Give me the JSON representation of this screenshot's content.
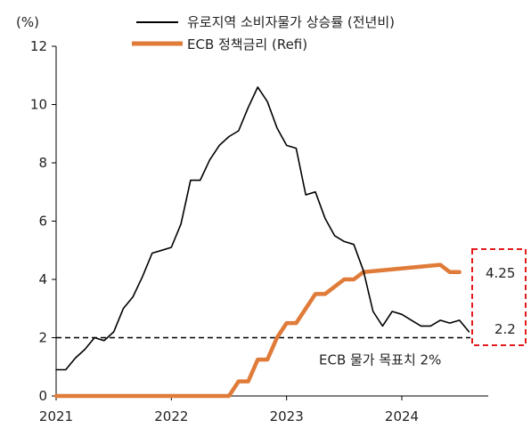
{
  "chart_data": {
    "type": "line",
    "unit_label": "(%)",
    "ylim": [
      0,
      12
    ],
    "yticks": [
      0,
      2,
      4,
      6,
      8,
      10,
      12
    ],
    "xlim": [
      2021.0,
      2024.75
    ],
    "xticks": [
      "2021",
      "2022",
      "2023",
      "2024"
    ],
    "grid": false,
    "legend_position": "top-center",
    "series": [
      {
        "name": "유로지역 소비자물가 상승률 (전년비)",
        "color": "#000000",
        "x": [
          "2021-01",
          "2021-02",
          "2021-03",
          "2021-04",
          "2021-05",
          "2021-06",
          "2021-07",
          "2021-08",
          "2021-09",
          "2021-10",
          "2021-11",
          "2021-12",
          "2022-01",
          "2022-02",
          "2022-03",
          "2022-04",
          "2022-05",
          "2022-06",
          "2022-07",
          "2022-08",
          "2022-09",
          "2022-10",
          "2022-11",
          "2022-12",
          "2023-01",
          "2023-02",
          "2023-03",
          "2023-04",
          "2023-05",
          "2023-06",
          "2023-07",
          "2023-08",
          "2023-09",
          "2023-10",
          "2023-11",
          "2023-12",
          "2024-01",
          "2024-02",
          "2024-03",
          "2024-04",
          "2024-05",
          "2024-06",
          "2024-07",
          "2024-08"
        ],
        "values": [
          0.9,
          0.9,
          1.3,
          1.6,
          2.0,
          1.9,
          2.2,
          3.0,
          3.4,
          4.1,
          4.9,
          5.0,
          5.1,
          5.9,
          7.4,
          7.4,
          8.1,
          8.6,
          8.9,
          9.1,
          9.9,
          10.6,
          10.1,
          9.2,
          8.6,
          8.5,
          6.9,
          7.0,
          6.1,
          5.5,
          5.3,
          5.2,
          4.3,
          2.9,
          2.4,
          2.9,
          2.8,
          2.6,
          2.4,
          2.4,
          2.6,
          2.5,
          2.6,
          2.2
        ]
      },
      {
        "name": "ECB 정책금리 (Refi)",
        "color": "#E07B39",
        "x": [
          "2021-01",
          "2022-07",
          "2022-08",
          "2022-09",
          "2022-10",
          "2022-11",
          "2022-12",
          "2023-01",
          "2023-02",
          "2023-03",
          "2023-04",
          "2023-05",
          "2023-06",
          "2023-07",
          "2023-08",
          "2023-09",
          "2024-05",
          "2024-06",
          "2024-07"
        ],
        "values": [
          0.0,
          0.0,
          0.5,
          0.5,
          1.25,
          1.25,
          2.0,
          2.5,
          2.5,
          3.0,
          3.5,
          3.5,
          3.75,
          4.0,
          4.0,
          4.25,
          4.5,
          4.25,
          4.25
        ]
      }
    ],
    "reference_line": {
      "value": 2,
      "label": "ECB 물가 목표치 2%",
      "style": "dashed"
    },
    "end_labels": [
      "4.25",
      "2.2"
    ],
    "highlight_box_color": "#E31A1C"
  }
}
